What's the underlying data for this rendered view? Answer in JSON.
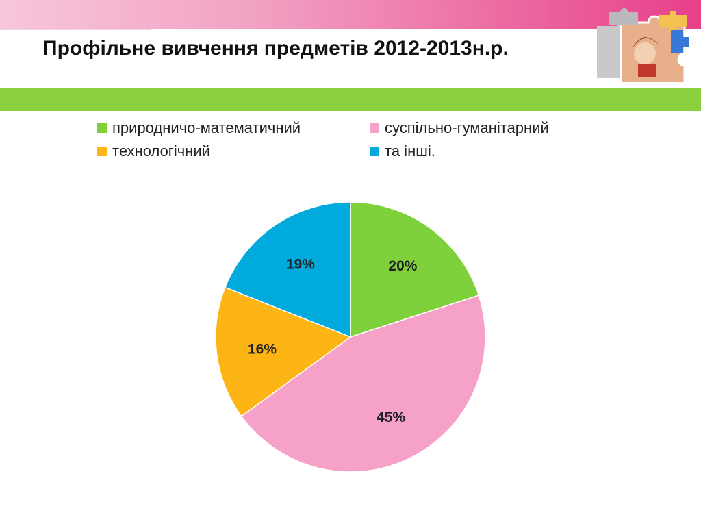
{
  "slide": {
    "title": "Профільне вивчення предметів  2012-2013н.р."
  },
  "colors": {
    "top_band": "#ec6ea3",
    "green_band": "#8ccf3f"
  },
  "chart_data": {
    "type": "pie",
    "categories": [
      "природничо-математичний",
      "суспільно-гуманітарний",
      "технологічний",
      "та інші."
    ],
    "values": [
      20,
      45,
      16,
      19
    ],
    "labels": [
      "20%",
      "45%",
      "16%",
      "19%"
    ],
    "colors": [
      "#7fd13b",
      "#f5a1c8",
      "#fdb515",
      "#00aadd"
    ],
    "title": "",
    "legend_position": "top"
  },
  "decoration": {
    "icon": "puzzle-pieces-with-child-photo"
  }
}
